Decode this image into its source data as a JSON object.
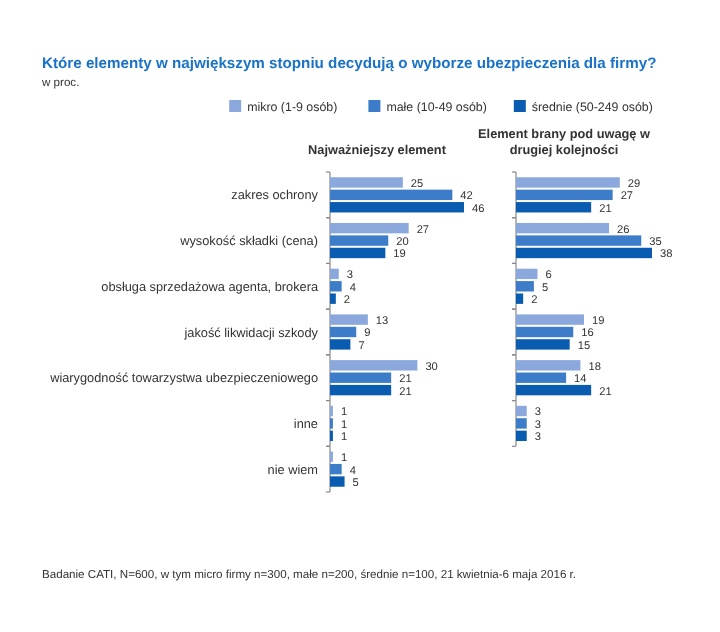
{
  "chart_data": [
    {
      "type": "bar",
      "orientation": "horizontal",
      "title": "Najważniejszy element",
      "annotations": [
        "Które elementy w największym stopniu decydują o wyborze ubezpieczenia dla firmy?",
        "w proc.",
        "Badanie CATI, N=600, w tym micro firmy n=300, małe n=200, średnie n=100, 21 kwietnia-6 maja 2016 r."
      ],
      "categories": [
        "zakres ochrony",
        "wysokość składki (cena)",
        "obsługa sprzedażowa agenta, brokera",
        "jakość likwidacji szkody",
        "wiarygodność towarzystwa ubezpieczeniowego",
        "inne",
        "nie wiem"
      ],
      "series": [
        {
          "name": "mikro (1-9 osób)",
          "color": "#8aa8dc",
          "values": [
            25,
            27,
            3,
            13,
            30,
            1,
            1
          ]
        },
        {
          "name": "małe (10-49 osób)",
          "color": "#3d7cc9",
          "values": [
            42,
            20,
            4,
            9,
            21,
            1,
            4
          ]
        },
        {
          "name": "średnie (50-249 osób)",
          "color": "#0a5cb0",
          "values": [
            46,
            19,
            2,
            7,
            21,
            1,
            5
          ]
        }
      ],
      "data_labels": true,
      "legend": "top right"
    },
    {
      "type": "bar",
      "orientation": "horizontal",
      "title": "Element brany pod uwagę w drugiej kolejności",
      "categories": [
        null,
        null,
        null,
        null,
        null,
        null,
        null
      ],
      "series": [
        {
          "color": "#8aa8dc",
          "values": [
            29,
            26,
            6,
            19,
            18,
            3,
            null
          ]
        },
        {
          "color": "#3d7cc9",
          "values": [
            27,
            35,
            5,
            16,
            14,
            3,
            null
          ]
        },
        {
          "color": "#0a5cb0",
          "values": [
            21,
            38,
            2,
            15,
            21,
            3,
            null
          ]
        }
      ],
      "data_labels": true
    }
  ]
}
